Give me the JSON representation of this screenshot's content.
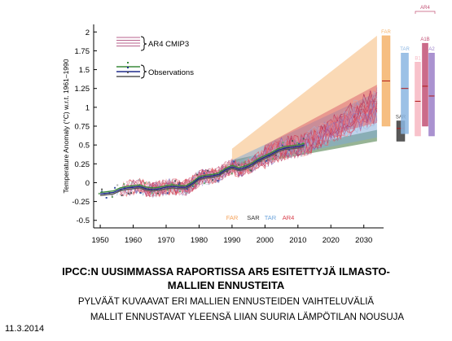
{
  "slide": {
    "title_line1": "IPCC:N UUSIMMASSA RAPORTISSA AR5 ESITETTYJÄ ILMASTO-",
    "title_line2": "MALLIEN ENNUSTEITA",
    "sub_line1": "PYLVÄÄT  KUVAAVAT ERI MALLIEN ENNUSTEIDEN VAIHTELUVÄLIÄ",
    "sub_line2": "MALLIT ENNUSTAVAT YLEENSÄ LIIAN SUURIA LÄMPÖTILAN NOUSUJA",
    "date": "11.3.2014"
  },
  "chart_data": {
    "type": "line",
    "title": "",
    "xlabel": "",
    "ylabel": "Temperature Anomaly (°C) w.r.t. 1961–1990",
    "xlim": [
      1948,
      2036
    ],
    "ylim": [
      -0.6,
      2.1
    ],
    "x_ticks": [
      "1950",
      "1960",
      "1970",
      "1980",
      "1990",
      "2000",
      "2010",
      "2020",
      "2030"
    ],
    "y_ticks": [
      "2",
      "1.75",
      "1.5",
      "1.25",
      "1",
      "0.75",
      "0.5",
      "0.25",
      "0",
      "-0.25",
      "-0.5"
    ],
    "legend": [
      {
        "label": "AR4 CMIP3",
        "color": "#b8628c"
      },
      {
        "label": "Observations",
        "color": "#444444"
      }
    ],
    "observations": {
      "x": [
        1950,
        1952,
        1954,
        1956,
        1958,
        1960,
        1962,
        1964,
        1966,
        1968,
        1970,
        1972,
        1974,
        1976,
        1978,
        1980,
        1982,
        1984,
        1986,
        1988,
        1990,
        1992,
        1994,
        1996,
        1998,
        2000,
        2002,
        2004,
        2006,
        2008,
        2010,
        2012
      ],
      "y": [
        -0.15,
        -0.14,
        -0.13,
        -0.09,
        -0.07,
        -0.06,
        -0.05,
        -0.08,
        -0.09,
        -0.08,
        -0.06,
        -0.05,
        -0.06,
        -0.06,
        -0.01,
        0.06,
        0.08,
        0.09,
        0.11,
        0.17,
        0.21,
        0.18,
        0.2,
        0.24,
        0.3,
        0.34,
        0.38,
        0.43,
        0.46,
        0.47,
        0.48,
        0.5
      ]
    },
    "projection_fans": [
      {
        "name": "FAR",
        "color": "#f5b36b",
        "x": [
          1990,
          2034
        ],
        "lower": [
          0.25,
          1.0
        ],
        "upper": [
          0.45,
          1.95
        ]
      },
      {
        "name": "SAR",
        "color": "#2f6a2b",
        "x": [
          1990,
          2034
        ],
        "lower": [
          0.2,
          0.55
        ],
        "upper": [
          0.3,
          0.7
        ]
      },
      {
        "name": "TAR",
        "color": "#7ea8d8",
        "x": [
          1990,
          2034
        ],
        "lower": [
          0.22,
          0.6
        ],
        "upper": [
          0.3,
          1.2
        ]
      },
      {
        "name": "AR4",
        "color": "#d85a6a",
        "x": [
          2000,
          2034
        ],
        "lower": [
          0.4,
          0.8
        ],
        "upper": [
          0.5,
          1.3
        ]
      }
    ],
    "range_bars": [
      {
        "name": "FAR",
        "color": "#f5b36b",
        "low": 0.75,
        "high": 1.95,
        "center": 1.35
      },
      {
        "name": "SAR",
        "color": "#3c3c3c",
        "low": 0.55,
        "high": 0.82,
        "center": 0.72
      },
      {
        "name": "TAR",
        "color": "#8bb6e2",
        "low": 0.65,
        "high": 1.72,
        "center": 1.25
      },
      {
        "name": "B1",
        "color": "#f7b7c2",
        "low": 0.62,
        "high": 1.6,
        "center": 1.08
      },
      {
        "name": "A1B",
        "color": "#c25175",
        "low": 0.75,
        "high": 1.85,
        "center": 1.28
      },
      {
        "name": "A2",
        "color": "#9b7fc8",
        "low": 0.62,
        "high": 1.72,
        "center": 1.15
      }
    ],
    "range_bar_group_label": "AR4",
    "bottom_legend": [
      {
        "label": "FAR",
        "color": "#f5a35b"
      },
      {
        "label": "SAR",
        "color": "#333333"
      },
      {
        "label": "TAR",
        "color": "#6ea5dc"
      },
      {
        "label": "AR4",
        "color": "#d8404c"
      }
    ]
  }
}
